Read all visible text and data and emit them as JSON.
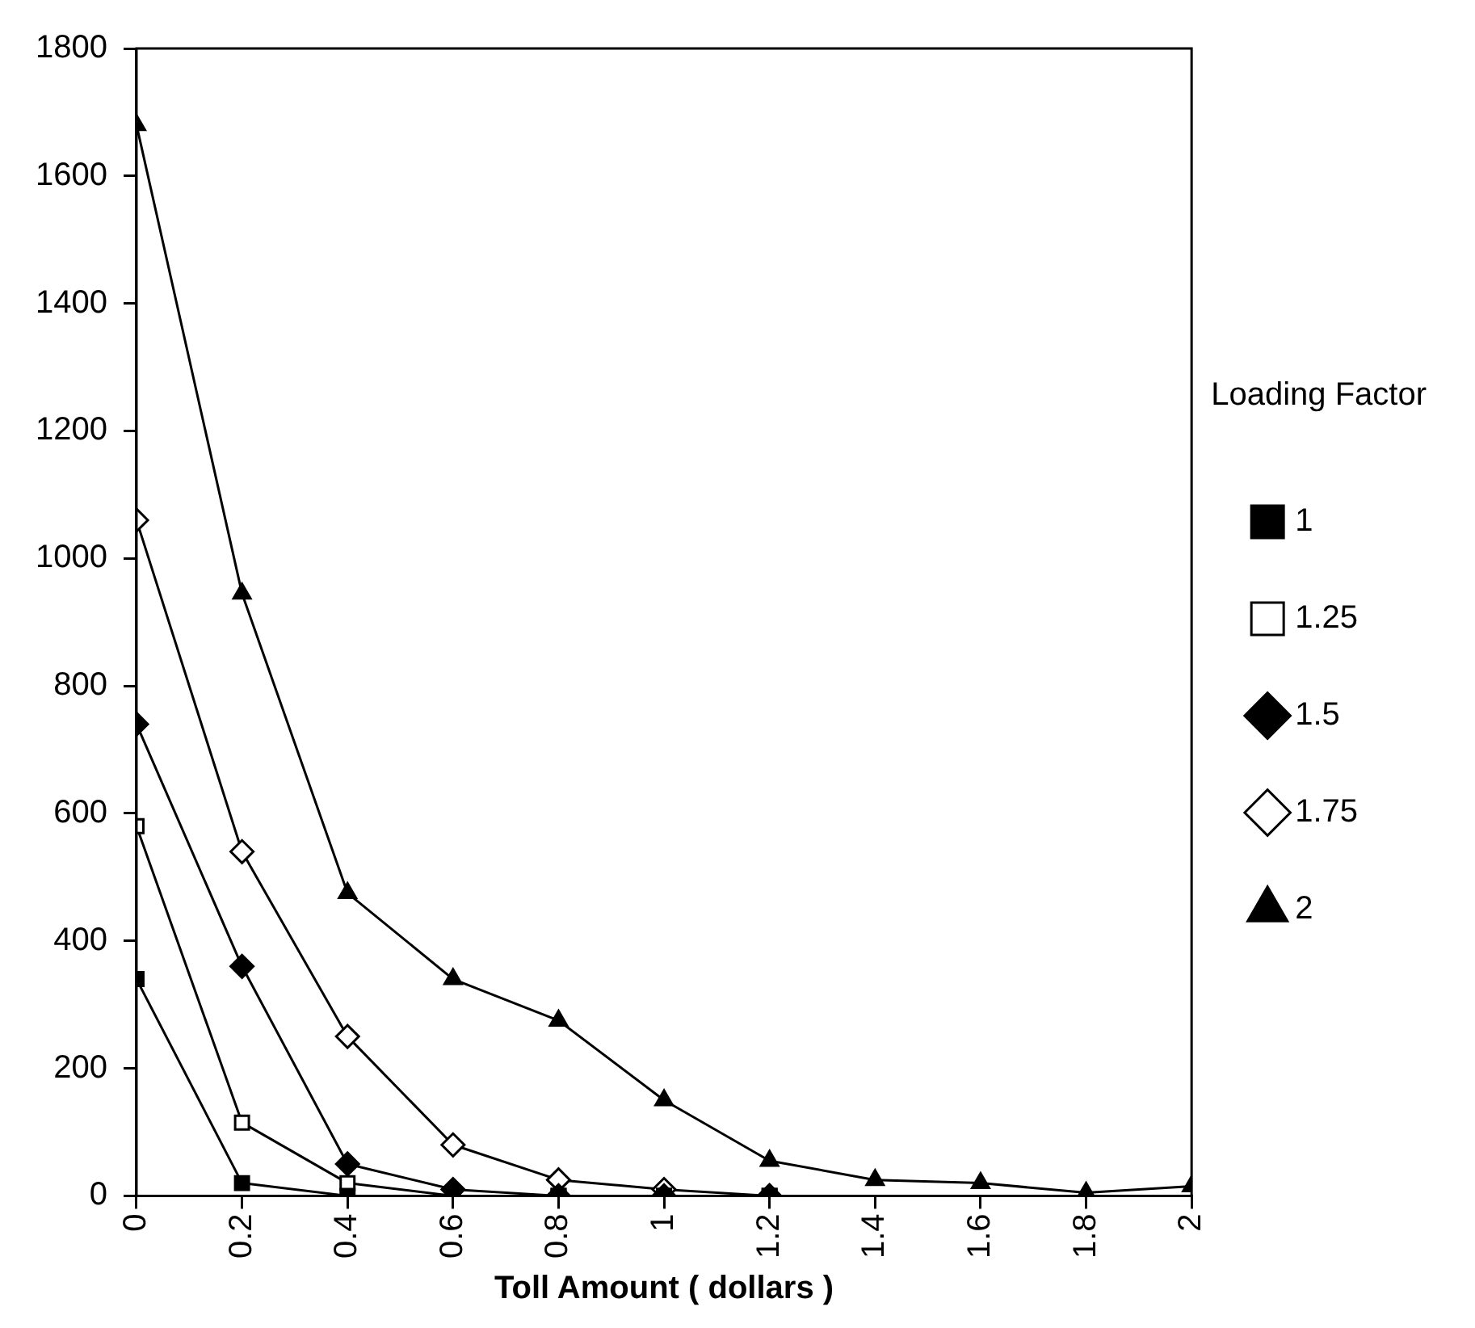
{
  "chart_data": {
    "type": "line",
    "xlabel": "Toll Amount ( dollars )",
    "legend_title": "Loading Factor",
    "legend": "right",
    "grid": false,
    "xlim": [
      0,
      2
    ],
    "xticks": [
      0,
      0.2,
      0.4,
      0.6,
      0.8,
      1,
      1.2,
      1.4,
      1.6,
      1.8,
      2
    ],
    "ylim": [
      0,
      1800
    ],
    "yticks": [
      0,
      200,
      400,
      600,
      800,
      1000,
      1200,
      1400,
      1600,
      1800
    ],
    "series": [
      {
        "name": "1",
        "color": "#000000",
        "marker": "square",
        "x": [
          0,
          0.2,
          0.4,
          0.6,
          0.8,
          1,
          1.2
        ],
        "values": [
          340,
          20,
          0,
          0,
          0,
          0,
          0
        ]
      },
      {
        "name": "1.25",
        "color": "#000000",
        "marker": "square",
        "x": [
          0,
          0.2,
          0.4,
          0.6,
          0.8,
          1,
          1.2
        ],
        "values": [
          580,
          115,
          20,
          0,
          0,
          0,
          0
        ]
      },
      {
        "name": "1.5",
        "color": "#000000",
        "marker": "diamond",
        "x": [
          0,
          0.2,
          0.4,
          0.6,
          0.8,
          1,
          1.2
        ],
        "values": [
          740,
          360,
          50,
          10,
          0,
          0,
          0
        ]
      },
      {
        "name": "1.75",
        "color": "#000000",
        "marker": "diamond",
        "x": [
          0,
          0.2,
          0.4,
          0.6,
          0.8,
          1,
          1.2
        ],
        "values": [
          1060,
          540,
          250,
          80,
          25,
          10,
          0
        ]
      },
      {
        "name": "2",
        "color": "#000000",
        "marker": "triangle",
        "x": [
          0,
          0.2,
          0.4,
          0.6,
          0.8,
          1,
          1.2,
          1.4,
          1.6,
          1.8,
          2
        ],
        "values": [
          1680,
          945,
          475,
          340,
          275,
          150,
          55,
          25,
          20,
          5,
          15
        ]
      }
    ]
  }
}
